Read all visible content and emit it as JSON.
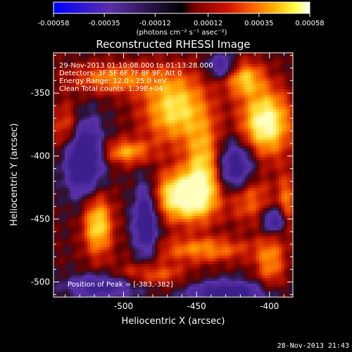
{
  "colorbar": {
    "tick_labels": [
      "-0.00058",
      "-0.00035",
      "-0.00012",
      "0.00012",
      "0.00035",
      "0.00058"
    ],
    "tick_values": [
      -0.00058,
      -0.00035,
      -0.00012,
      0.00012,
      0.00035,
      0.00058
    ],
    "range": [
      -0.00058,
      0.00058
    ],
    "unit_text": "(photons cm⁻² s⁻¹ asec⁻²)",
    "colors": [
      "#0000ff",
      "#5a2ea8",
      "#000000",
      "#7a0000",
      "#d01200",
      "#ff6400",
      "#ffb000",
      "#ffff40",
      "#ffffff"
    ]
  },
  "chart_data": {
    "type": "heatmap",
    "title": "Reconstructed RHESSI Image",
    "xlabel": "Heliocentric X (arcsec)",
    "ylabel": "Heliocentric Y (arcsec)",
    "xlim": [
      -548,
      -384
    ],
    "ylim": [
      -512,
      -318
    ],
    "x_ticks": [
      -500,
      -450,
      -400
    ],
    "x_tick_labels": [
      "-500",
      "-450",
      "-400"
    ],
    "y_ticks": [
      -500,
      -450,
      -400,
      -350
    ],
    "y_tick_labels": [
      "-500",
      "-450",
      "-400",
      "-350"
    ],
    "peak": [
      -383,
      -382
    ],
    "annotations": [
      "29-Nov-2013 01:10:08.000 to 01:13:28.000",
      "Detectors: 3F 5F 6F 7F 8F 9F, Att 0",
      "Energy Range: 12.0 - 25.0 keV",
      "Clean     Total counts: 1.39E+04"
    ],
    "peak_text": "Position of Peak = [-383,-382]"
  },
  "footer": {
    "timestamp": "28-Nov-2013 21:43"
  }
}
